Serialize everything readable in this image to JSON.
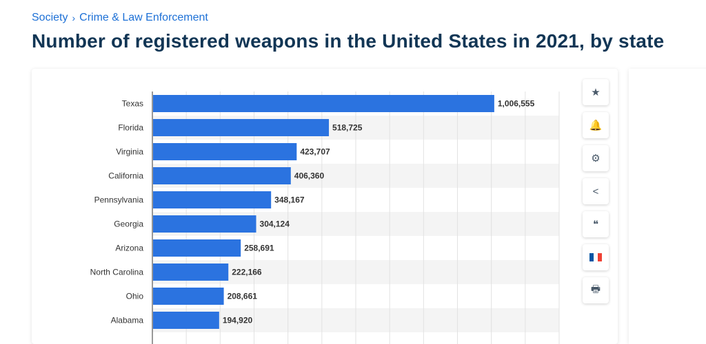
{
  "breadcrumb": {
    "level1": "Society",
    "separator": "›",
    "level2": "Crime & Law Enforcement"
  },
  "title": "Number of registered weapons in the United States in 2021, by state",
  "tools": [
    {
      "name": "favorite-star-icon",
      "glyph": "★"
    },
    {
      "name": "notification-bell-icon",
      "glyph": "🔔"
    },
    {
      "name": "settings-gear-icon",
      "glyph": "⚙"
    },
    {
      "name": "share-icon",
      "glyph": "<"
    },
    {
      "name": "cite-quote-icon",
      "glyph": "❝"
    },
    {
      "name": "language-flag-fr-icon",
      "glyph": ""
    },
    {
      "name": "print-icon",
      "glyph": "🖶"
    }
  ],
  "colors": {
    "bar": "#2b73e0",
    "grid": "#e2e2e2",
    "stripe": "#f4f4f4",
    "flag": [
      "#0055a4",
      "#ffffff",
      "#ef4135"
    ]
  },
  "chart_data": {
    "type": "bar",
    "orientation": "horizontal",
    "categories": [
      "Texas",
      "Florida",
      "Virginia",
      "California",
      "Pennsylvania",
      "Georgia",
      "Arizona",
      "North Carolina",
      "Ohio",
      "Alabama"
    ],
    "values": [
      1006555,
      518725,
      423707,
      406360,
      348167,
      304124,
      258691,
      222166,
      208661,
      194920
    ],
    "value_labels": [
      "1,006,555",
      "518,725",
      "423,707",
      "406,360",
      "348,167",
      "304,124",
      "258,691",
      "222,166",
      "208,661",
      "194,920"
    ],
    "xlim": [
      0,
      1200000
    ],
    "grid": true
  }
}
